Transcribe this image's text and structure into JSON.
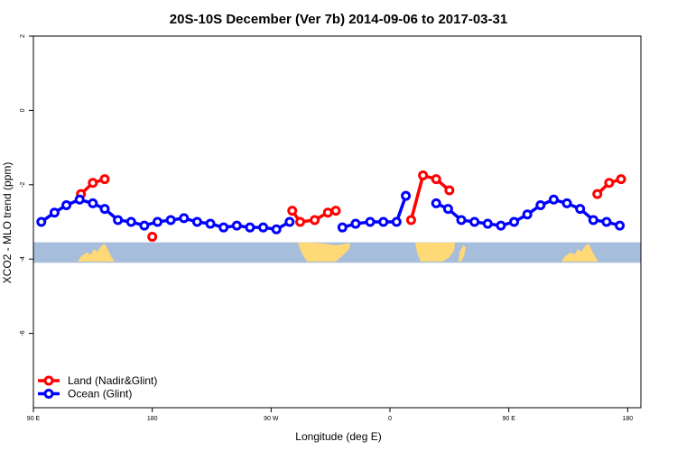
{
  "chart_data": {
    "type": "line",
    "title": "20S-10S December (Ver 7b)   2014-09-06 to 2017-03-31",
    "xlabel": "Longitude (deg E)",
    "ylabel": "XCO2 - MLO trend (ppm)",
    "xlim": [
      90,
      550
    ],
    "ylim": [
      -8,
      2
    ],
    "x_ticks": [
      {
        "value": 90,
        "label": "90 E"
      },
      {
        "value": 180,
        "label": "180"
      },
      {
        "value": 270,
        "label": "90 W"
      },
      {
        "value": 360,
        "label": "0"
      },
      {
        "value": 450,
        "label": "90 E"
      },
      {
        "value": 540,
        "label": "180"
      }
    ],
    "y_ticks": [
      {
        "value": 2,
        "label": "2"
      },
      {
        "value": 0,
        "label": "0"
      },
      {
        "value": -2,
        "label": "-2"
      },
      {
        "value": -4,
        "label": "-4"
      },
      {
        "value": -6,
        "label": "-6"
      }
    ],
    "map_strip": {
      "y_top": -3.55,
      "y_bottom": -4.1,
      "ocean_color": "#a6bddb",
      "land_color": "#fed976"
    },
    "series": [
      {
        "name": "Land (Nadir&Glint)",
        "color": "#ff0000",
        "segments": [
          [
            [
              126,
              -2.25
            ],
            [
              135,
              -1.95
            ],
            [
              144,
              -1.85
            ]
          ],
          [
            [
              180,
              -3.4
            ]
          ],
          [
            [
              286,
              -2.7
            ],
            [
              292,
              -3.0
            ],
            [
              303,
              -2.95
            ],
            [
              313,
              -2.75
            ],
            [
              319,
              -2.7
            ]
          ],
          [
            [
              376,
              -2.95
            ],
            [
              385,
              -1.75
            ],
            [
              395,
              -1.85
            ],
            [
              405,
              -2.15
            ]
          ],
          [
            [
              517,
              -2.25
            ],
            [
              526,
              -1.95
            ],
            [
              535,
              -1.85
            ]
          ]
        ]
      },
      {
        "name": "Ocean (Glint)",
        "color": "#0000ff",
        "segments": [
          [
            [
              96,
              -3.0
            ],
            [
              106,
              -2.75
            ],
            [
              115,
              -2.55
            ],
            [
              125,
              -2.4
            ],
            [
              135,
              -2.5
            ],
            [
              144,
              -2.65
            ],
            [
              154,
              -2.95
            ],
            [
              164,
              -3.0
            ],
            [
              174,
              -3.1
            ],
            [
              184,
              -3.0
            ],
            [
              194,
              -2.95
            ],
            [
              204,
              -2.9
            ],
            [
              214,
              -3.0
            ],
            [
              224,
              -3.05
            ],
            [
              234,
              -3.15
            ],
            [
              244,
              -3.1
            ],
            [
              254,
              -3.15
            ],
            [
              264,
              -3.15
            ],
            [
              274,
              -3.2
            ],
            [
              284,
              -3.0
            ]
          ],
          [
            [
              324,
              -3.15
            ],
            [
              334,
              -3.05
            ],
            [
              345,
              -3.0
            ],
            [
              355,
              -3.0
            ],
            [
              365,
              -3.0
            ],
            [
              372,
              -2.3
            ]
          ],
          [
            [
              395,
              -2.5
            ],
            [
              404,
              -2.65
            ],
            [
              414,
              -2.95
            ],
            [
              424,
              -3.0
            ],
            [
              434,
              -3.05
            ],
            [
              444,
              -3.1
            ],
            [
              454,
              -3.0
            ],
            [
              464,
              -2.8
            ],
            [
              474,
              -2.55
            ],
            [
              484,
              -2.4
            ],
            [
              494,
              -2.5
            ],
            [
              504,
              -2.65
            ],
            [
              514,
              -2.95
            ],
            [
              524,
              -3.0
            ],
            [
              534,
              -3.1
            ]
          ]
        ]
      }
    ],
    "legend": {
      "position": "bottom-left"
    }
  }
}
